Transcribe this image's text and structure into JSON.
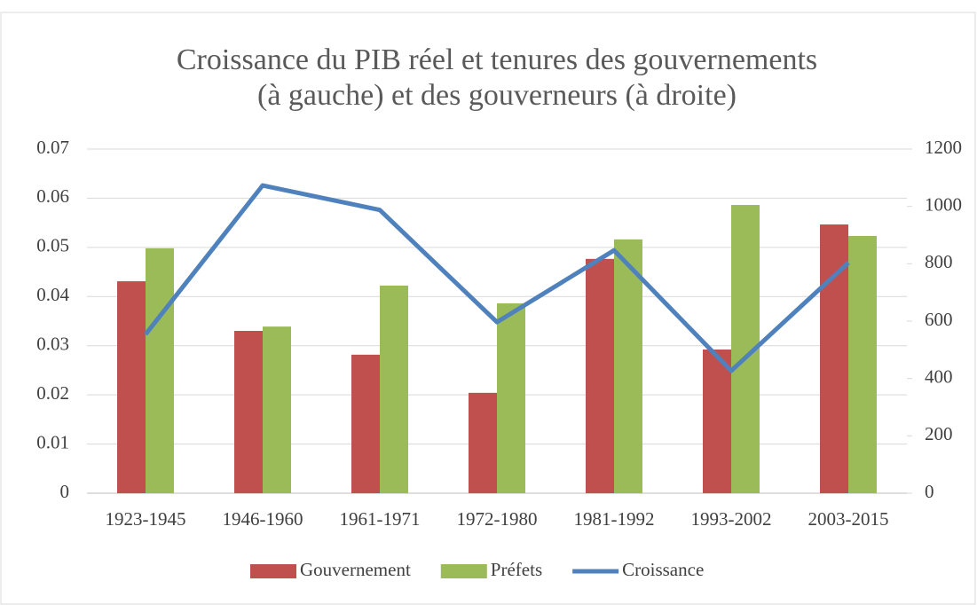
{
  "chart_data": {
    "type": "bar-line",
    "title": "Croissance du PIB réel et tenures des gouvernements",
    "subtitle": "(à gauche) et des gouverneurs (à droite)",
    "categories": [
      "1923-1945",
      "1946-1960",
      "1961-1971",
      "1972-1980",
      "1981-1992",
      "1993-2002",
      "2003-2015"
    ],
    "series": [
      {
        "name": "Gouvernement",
        "type": "bar",
        "color": "#c0504d",
        "axis": "y2",
        "values": [
          739,
          566,
          483,
          350,
          817,
          501,
          937
        ]
      },
      {
        "name": "Préfets",
        "type": "bar",
        "color": "#9bbb59",
        "axis": "y2",
        "values": [
          854,
          581,
          724,
          662,
          885,
          1005,
          897
        ]
      },
      {
        "name": "Croissance",
        "type": "line",
        "color": "#4f81bd",
        "axis": "y",
        "values": [
          0.0323,
          0.0626,
          0.0576,
          0.0348,
          0.0494,
          0.0249,
          0.0469
        ]
      }
    ],
    "ylim": [
      0,
      0.07
    ],
    "yticks": [
      0,
      0.01,
      0.02,
      0.03,
      0.04,
      0.05,
      0.06,
      0.07
    ],
    "y2lim": [
      0,
      1200
    ],
    "y2ticks": [
      0,
      200,
      400,
      600,
      800,
      1000,
      1200
    ],
    "grid": true,
    "legend": "bottom"
  }
}
